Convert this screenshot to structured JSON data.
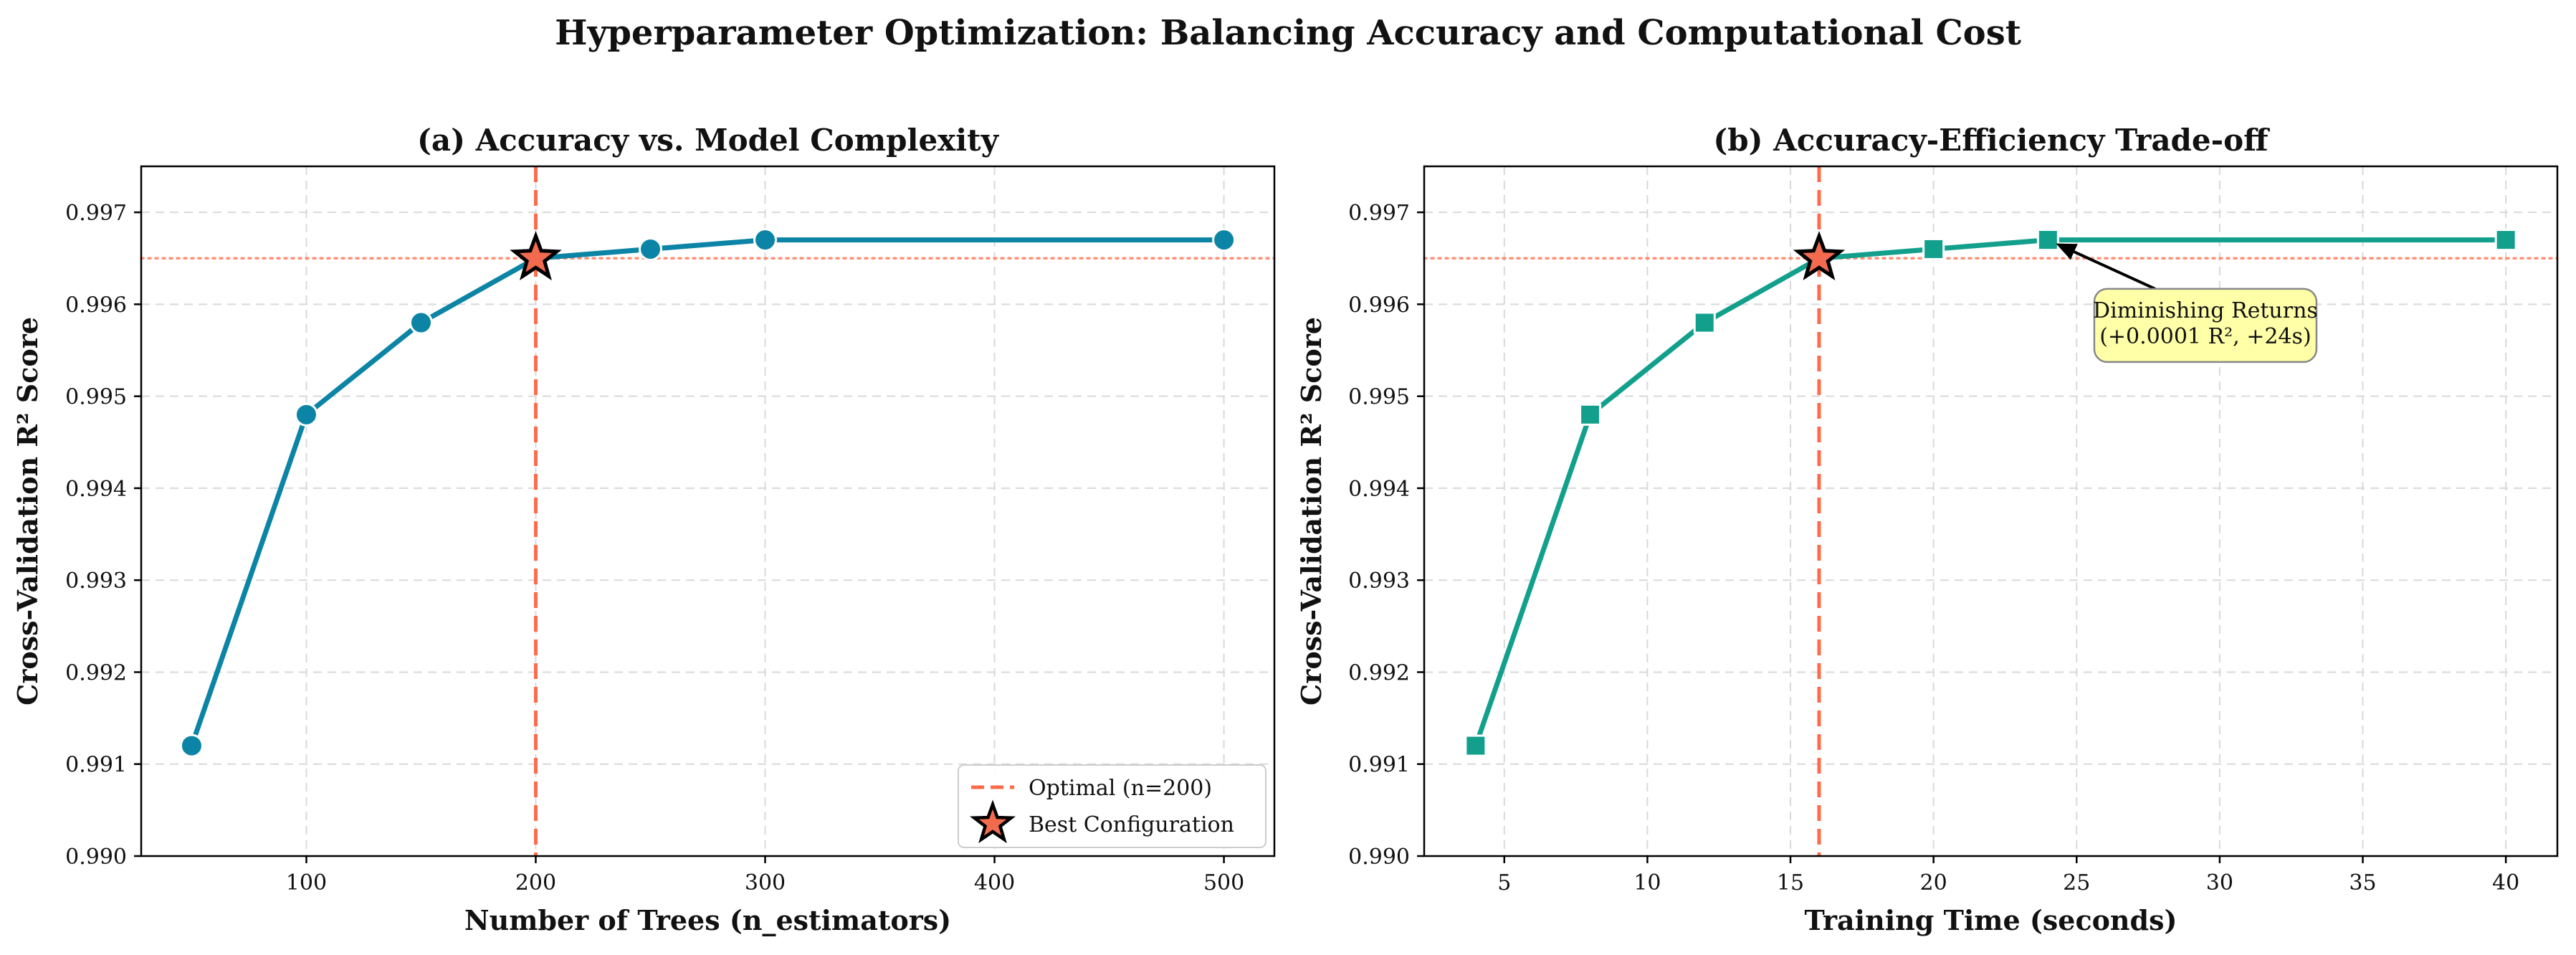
{
  "figure": {
    "title": "Hyperparameter Optimization: Balancing Accuracy and Computational Cost"
  },
  "colors": {
    "line_a": "#0b84a5",
    "line_b": "#12a08c",
    "marker_edge": "#ffffff",
    "optimal": "#ff6b4a",
    "star_fill": "#f26b4f",
    "star_edge": "#000000",
    "annot_fill": "#ffffa8",
    "grid": "#d9d9d9"
  },
  "chart_data": [
    {
      "type": "line",
      "title": "(a) Accuracy vs. Model Complexity",
      "xlabel": "Number of Trees (n_estimators)",
      "ylabel": "Cross-Validation R² Score",
      "xlim": [
        28,
        522
      ],
      "ylim": [
        0.99,
        0.9975
      ],
      "xticks": [
        100,
        200,
        300,
        400,
        500
      ],
      "xtick_labels": [
        "100",
        "200",
        "300",
        "400",
        "500"
      ],
      "yticks": [
        0.99,
        0.991,
        0.992,
        0.993,
        0.994,
        0.995,
        0.996,
        0.997
      ],
      "ytick_labels": [
        "0.990",
        "0.991",
        "0.992",
        "0.993",
        "0.994",
        "0.995",
        "0.996",
        "0.997"
      ],
      "grid": true,
      "marker": "circle",
      "x": [
        50,
        100,
        150,
        200,
        250,
        300,
        500
      ],
      "y": [
        0.9912,
        0.9948,
        0.9958,
        0.9965,
        0.9966,
        0.9967,
        0.9967
      ],
      "optimal_x": 200,
      "reference_y": 0.9965,
      "best": {
        "x": 200,
        "y": 0.9965
      },
      "legend": {
        "position": "lower-right",
        "entries": [
          {
            "label": "Optimal (n=200)"
          },
          {
            "label": "Best Configuration"
          }
        ]
      }
    },
    {
      "type": "line",
      "title": "(b) Accuracy-Efficiency Trade-off",
      "xlabel": "Training Time (seconds)",
      "ylabel": "Cross-Validation R² Score",
      "xlim": [
        2.2,
        41.8
      ],
      "ylim": [
        0.99,
        0.9975
      ],
      "xticks": [
        5,
        10,
        15,
        20,
        25,
        30,
        35,
        40
      ],
      "xtick_labels": [
        "5",
        "10",
        "15",
        "20",
        "25",
        "30",
        "35",
        "40"
      ],
      "yticks": [
        0.99,
        0.991,
        0.992,
        0.993,
        0.994,
        0.995,
        0.996,
        0.997
      ],
      "ytick_labels": [
        "0.990",
        "0.991",
        "0.992",
        "0.993",
        "0.994",
        "0.995",
        "0.996",
        "0.997"
      ],
      "grid": true,
      "marker": "square",
      "x": [
        4,
        8,
        12,
        16,
        20,
        24,
        40
      ],
      "y": [
        0.9912,
        0.9948,
        0.9958,
        0.9965,
        0.9966,
        0.9967,
        0.9967
      ],
      "optimal_x": 16,
      "reference_y": 0.9965,
      "best": {
        "x": 16,
        "y": 0.9965
      },
      "annotation": {
        "lines": [
          "Diminishing Returns",
          "(+0.0001 R², +24s)"
        ],
        "point": {
          "x": 24,
          "y": 0.9967
        },
        "text_anchor": {
          "x": 29.5,
          "y": 0.99577
        }
      }
    }
  ]
}
